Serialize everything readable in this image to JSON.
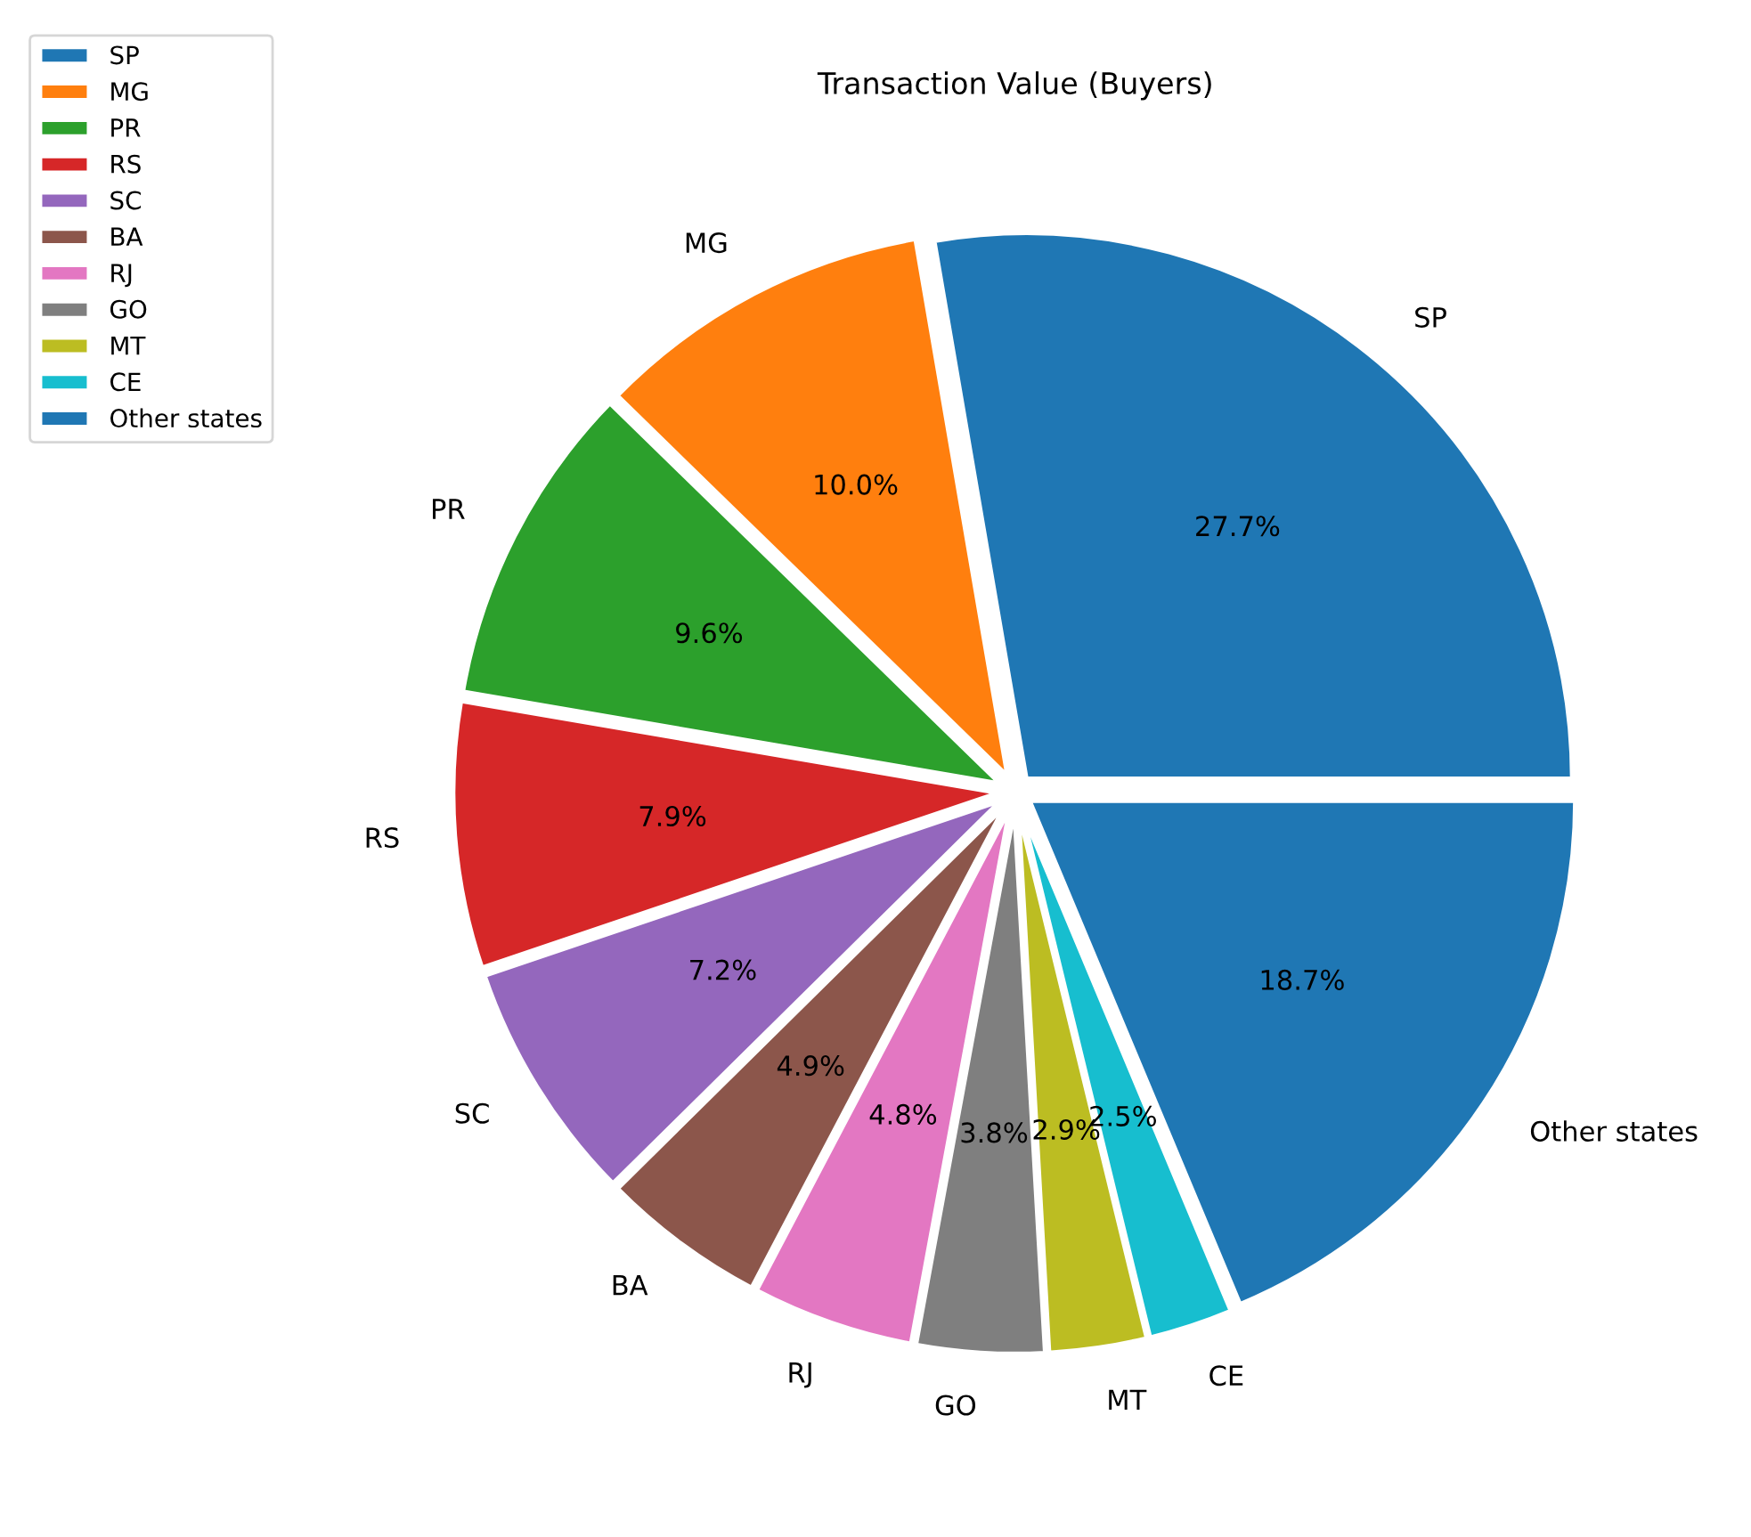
{
  "chart_data": {
    "type": "pie",
    "title": "Transaction Value (Buyers)",
    "categories": [
      "SP",
      "MG",
      "PR",
      "RS",
      "SC",
      "BA",
      "RJ",
      "GO",
      "MT",
      "CE",
      "Other states"
    ],
    "values": [
      27.7,
      10.0,
      9.6,
      7.9,
      7.2,
      4.9,
      4.8,
      3.8,
      2.9,
      2.5,
      18.7
    ],
    "value_labels": [
      "27.7%",
      "10.0%",
      "9.6%",
      "7.9%",
      "7.2%",
      "4.9%",
      "4.8%",
      "3.8%",
      "2.9%",
      "2.5%",
      "18.7%"
    ],
    "colors": [
      "#1f77b4",
      "#ff7f0e",
      "#2ca02c",
      "#d62728",
      "#9467bd",
      "#8c564b",
      "#e377c2",
      "#7f7f7f",
      "#bcbd22",
      "#17becf",
      "#1f77b4"
    ],
    "legend": "top left"
  }
}
